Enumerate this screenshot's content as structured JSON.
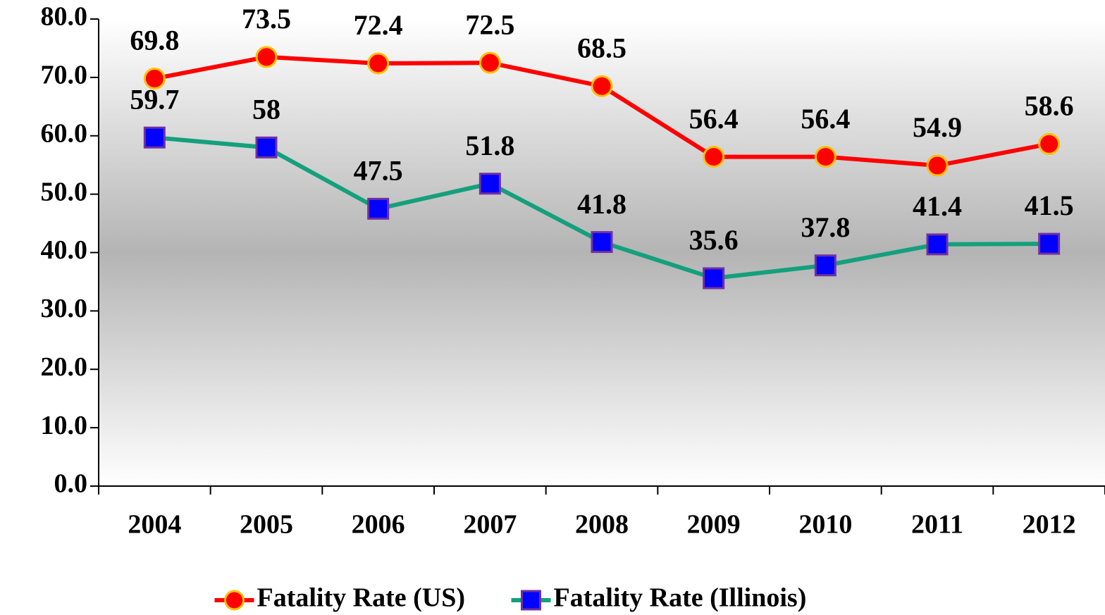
{
  "chart_data": {
    "type": "line",
    "categories": [
      "2004",
      "2005",
      "2006",
      "2007",
      "2008",
      "2009",
      "2010",
      "2011",
      "2012"
    ],
    "series": [
      {
        "name": "Fatality Rate (US)",
        "color": "#ff0000",
        "marker": "circle",
        "marker_color": "#ff0000",
        "marker_edge": "#ffc000",
        "values": [
          69.8,
          73.5,
          72.4,
          72.5,
          68.5,
          56.4,
          56.4,
          54.9,
          58.6
        ]
      },
      {
        "name": "Fatality Rate (Illinois)",
        "color": "#14a07c",
        "marker": "square",
        "marker_color": "#0000ff",
        "marker_edge": "#7030a0",
        "values": [
          59.7,
          58,
          47.5,
          51.8,
          41.8,
          35.6,
          37.8,
          41.4,
          41.5
        ]
      }
    ],
    "ylim": [
      0,
      80
    ],
    "yticks": [
      {
        "value": 0,
        "label": "0.0"
      },
      {
        "value": 10,
        "label": "10.0"
      },
      {
        "value": 20,
        "label": "20.0"
      },
      {
        "value": 30,
        "label": "30.0"
      },
      {
        "value": 40,
        "label": "40.0"
      },
      {
        "value": 50,
        "label": "50.0"
      },
      {
        "value": 60,
        "label": "60.0"
      },
      {
        "value": 70,
        "label": "70.0"
      },
      {
        "value": 80,
        "label": "80.0"
      }
    ],
    "grid": false,
    "legend": "bottom",
    "data_labels": true
  }
}
